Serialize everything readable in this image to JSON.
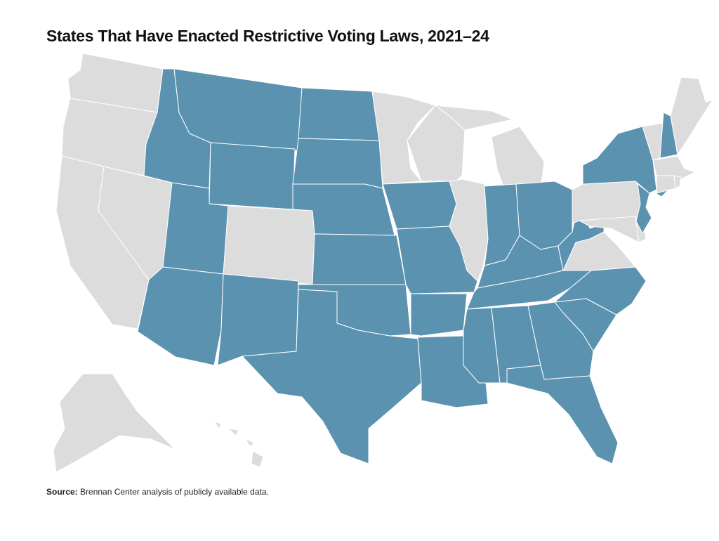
{
  "title": "States That Have Enacted Restrictive Voting Laws, 2021–24",
  "source": {
    "label": "Source:",
    "text": " Brennan Center analysis of publicly available data."
  },
  "colors": {
    "restrictive": "#5b92b0",
    "other": "#dcdcdc"
  },
  "states": [
    {
      "abbr": "WA",
      "restrictive": false
    },
    {
      "abbr": "OR",
      "restrictive": false
    },
    {
      "abbr": "CA",
      "restrictive": false
    },
    {
      "abbr": "NV",
      "restrictive": false
    },
    {
      "abbr": "ID",
      "restrictive": true
    },
    {
      "abbr": "MT",
      "restrictive": true
    },
    {
      "abbr": "WY",
      "restrictive": true
    },
    {
      "abbr": "ND",
      "restrictive": true
    },
    {
      "abbr": "SD",
      "restrictive": true
    },
    {
      "abbr": "NE",
      "restrictive": true
    },
    {
      "abbr": "UT",
      "restrictive": true
    },
    {
      "abbr": "CO",
      "restrictive": false
    },
    {
      "abbr": "AZ",
      "restrictive": true
    },
    {
      "abbr": "NM",
      "restrictive": true
    },
    {
      "abbr": "KS",
      "restrictive": true
    },
    {
      "abbr": "OK",
      "restrictive": true
    },
    {
      "abbr": "TX",
      "restrictive": true
    },
    {
      "abbr": "MN",
      "restrictive": false
    },
    {
      "abbr": "IA",
      "restrictive": true
    },
    {
      "abbr": "MO",
      "restrictive": true
    },
    {
      "abbr": "AR",
      "restrictive": true
    },
    {
      "abbr": "LA",
      "restrictive": true
    },
    {
      "abbr": "WI",
      "restrictive": false
    },
    {
      "abbr": "IL",
      "restrictive": false
    },
    {
      "abbr": "MI",
      "restrictive": false
    },
    {
      "abbr": "IN",
      "restrictive": true
    },
    {
      "abbr": "OH",
      "restrictive": true
    },
    {
      "abbr": "KY",
      "restrictive": true
    },
    {
      "abbr": "TN",
      "restrictive": true
    },
    {
      "abbr": "MS",
      "restrictive": true
    },
    {
      "abbr": "AL",
      "restrictive": true
    },
    {
      "abbr": "GA",
      "restrictive": true
    },
    {
      "abbr": "FL",
      "restrictive": true
    },
    {
      "abbr": "SC",
      "restrictive": true
    },
    {
      "abbr": "NC",
      "restrictive": true
    },
    {
      "abbr": "VA",
      "restrictive": false
    },
    {
      "abbr": "WV",
      "restrictive": true
    },
    {
      "abbr": "PA",
      "restrictive": false
    },
    {
      "abbr": "MD",
      "restrictive": false
    },
    {
      "abbr": "DE",
      "restrictive": false
    },
    {
      "abbr": "NJ",
      "restrictive": true
    },
    {
      "abbr": "NY",
      "restrictive": true
    },
    {
      "abbr": "VT",
      "restrictive": false
    },
    {
      "abbr": "NH",
      "restrictive": true
    },
    {
      "abbr": "ME",
      "restrictive": false
    },
    {
      "abbr": "MA",
      "restrictive": false
    },
    {
      "abbr": "CT",
      "restrictive": false
    },
    {
      "abbr": "RI",
      "restrictive": false
    },
    {
      "abbr": "AK",
      "restrictive": false
    },
    {
      "abbr": "HI",
      "restrictive": false
    }
  ]
}
